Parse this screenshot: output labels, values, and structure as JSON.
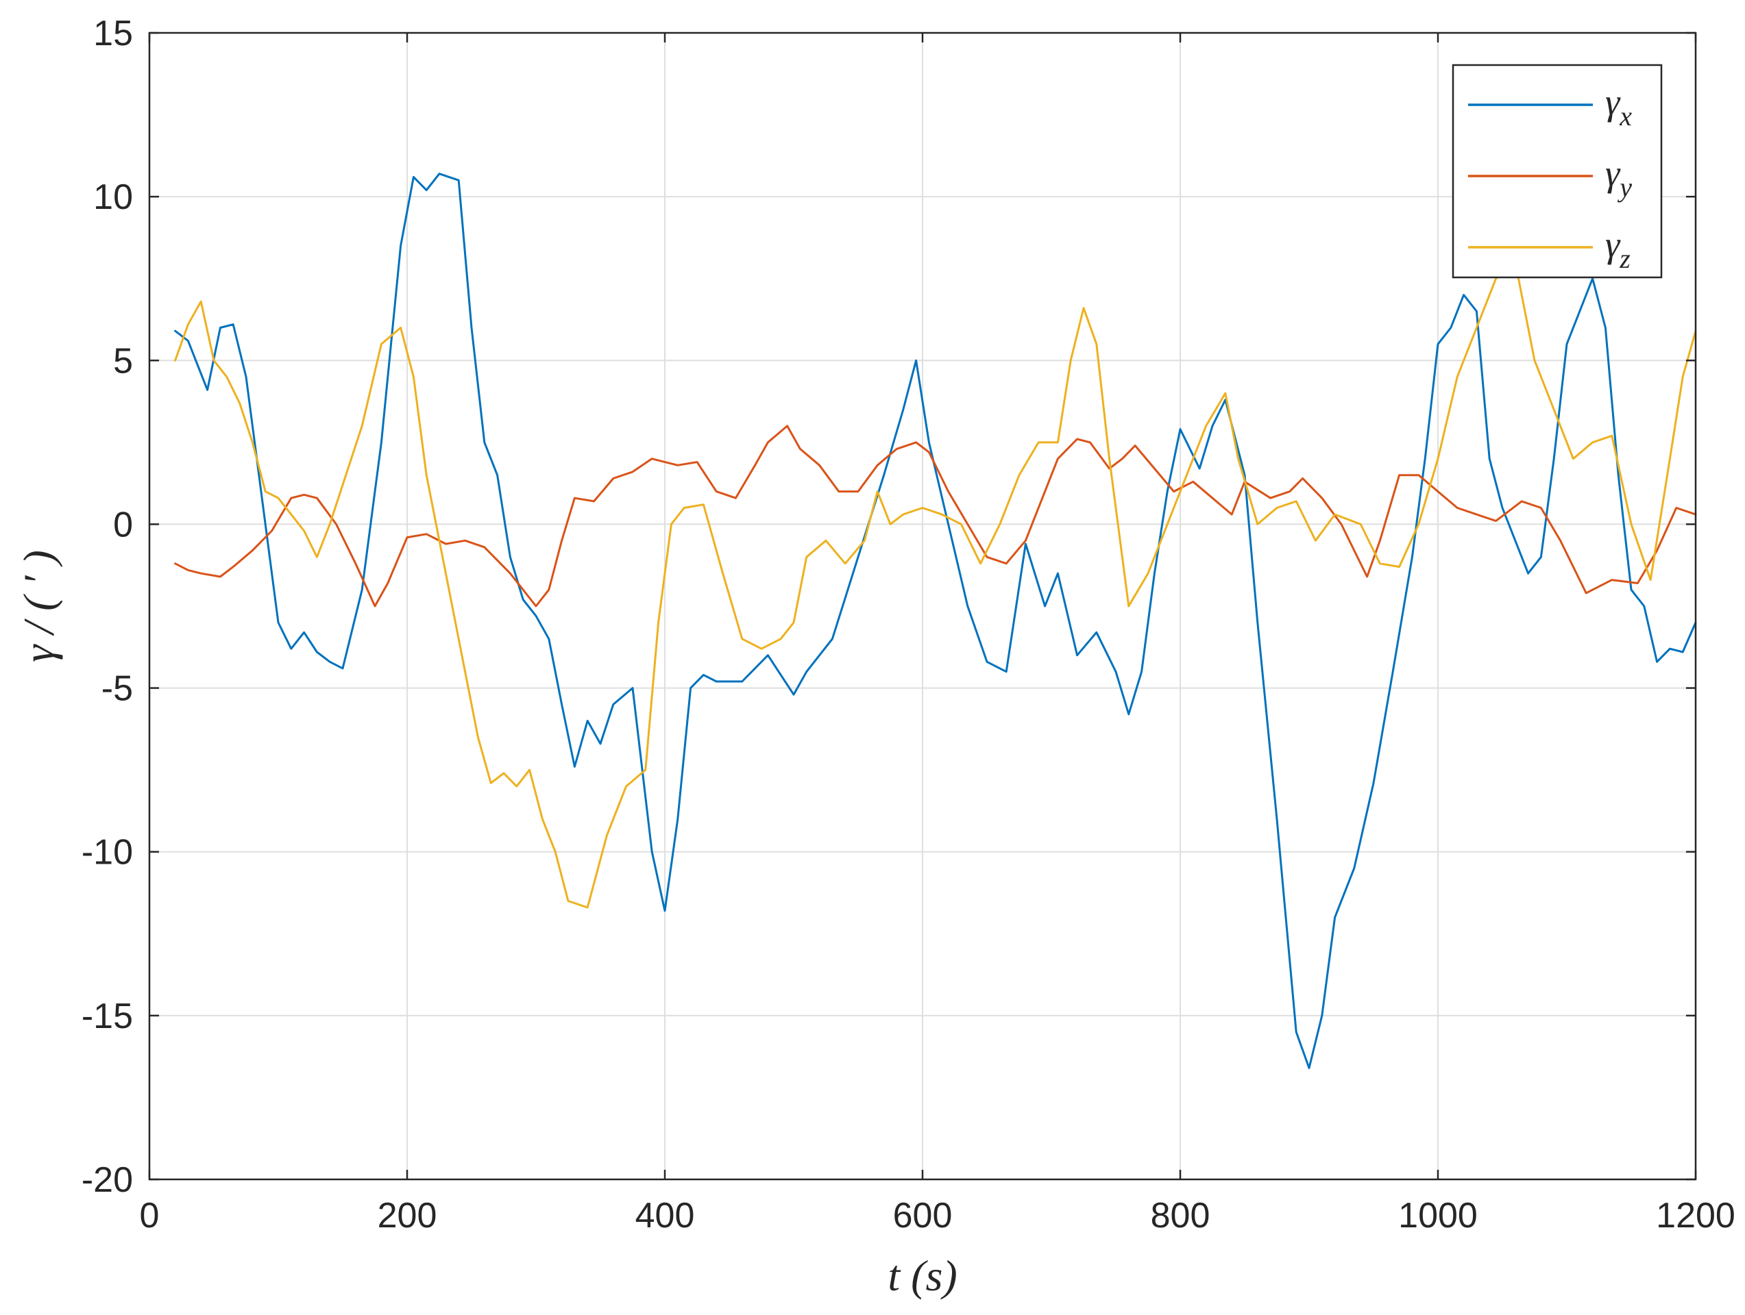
{
  "chart_data": {
    "type": "line",
    "title": "",
    "xlabel": "t (s)",
    "ylabel": "γ / ( ′ )",
    "xlim": [
      0,
      1200
    ],
    "ylim": [
      -20,
      15
    ],
    "xticks": [
      0,
      200,
      400,
      600,
      800,
      1000,
      1200
    ],
    "yticks": [
      -20,
      -15,
      -10,
      -5,
      0,
      5,
      10,
      15
    ],
    "xtick_labels": [
      "0",
      "200",
      "400",
      "600",
      "800",
      "1000",
      "1200"
    ],
    "ytick_labels": [
      "-20",
      "-15",
      "-10",
      "-5",
      "0",
      "5",
      "10",
      "15"
    ],
    "grid": true,
    "legend_position": "top-right",
    "series": [
      {
        "name": "γx",
        "legend_base": "γ",
        "legend_sub": "x",
        "color": "#0072BD",
        "x": [
          20,
          30,
          45,
          55,
          65,
          75,
          90,
          100,
          110,
          120,
          130,
          140,
          150,
          165,
          180,
          195,
          205,
          215,
          225,
          240,
          250,
          260,
          270,
          280,
          290,
          300,
          310,
          320,
          330,
          340,
          350,
          360,
          375,
          390,
          400,
          410,
          420,
          430,
          440,
          460,
          480,
          500,
          510,
          530,
          550,
          570,
          585,
          595,
          605,
          620,
          635,
          650,
          665,
          680,
          695,
          705,
          720,
          735,
          750,
          760,
          770,
          780,
          790,
          800,
          815,
          825,
          835,
          850,
          860,
          875,
          890,
          900,
          910,
          920,
          935,
          950,
          965,
          980,
          990,
          1000,
          1010,
          1020,
          1030,
          1040,
          1050,
          1060,
          1070,
          1080,
          1090,
          1100,
          1110,
          1120,
          1130,
          1140,
          1150,
          1160,
          1170,
          1180,
          1190,
          1200
        ],
        "values": [
          5.9,
          5.6,
          4.1,
          6.0,
          6.1,
          4.5,
          0.0,
          -3.0,
          -3.8,
          -3.3,
          -3.9,
          -4.2,
          -4.4,
          -2.0,
          2.5,
          8.5,
          10.6,
          10.2,
          10.7,
          10.5,
          6.0,
          2.5,
          1.5,
          -1.0,
          -2.3,
          -2.8,
          -3.5,
          -5.5,
          -7.4,
          -6.0,
          -6.7,
          -5.5,
          -5.0,
          -10.0,
          -11.8,
          -9.0,
          -5.0,
          -4.6,
          -4.8,
          -4.8,
          -4.0,
          -5.2,
          -4.5,
          -3.5,
          -1.0,
          1.5,
          3.5,
          5.0,
          2.5,
          0.0,
          -2.5,
          -4.2,
          -4.5,
          -0.6,
          -2.5,
          -1.5,
          -4.0,
          -3.3,
          -4.5,
          -5.8,
          -4.5,
          -1.5,
          1.0,
          2.9,
          1.7,
          3.0,
          3.8,
          1.5,
          -3.0,
          -9.0,
          -15.5,
          -16.6,
          -15.0,
          -12.0,
          -10.5,
          -7.9,
          -4.5,
          -1.0,
          2.0,
          5.5,
          6.0,
          7.0,
          6.5,
          2.0,
          0.5,
          -0.5,
          -1.5,
          -1.0,
          2.0,
          5.5,
          6.5,
          7.5,
          6.0,
          1.5,
          -2.0,
          -2.5,
          -4.2,
          -3.8,
          -3.9,
          -3.0
        ]
      },
      {
        "name": "γy",
        "legend_base": "γ",
        "legend_sub": "y",
        "color": "#D95319",
        "x": [
          20,
          30,
          40,
          55,
          65,
          80,
          95,
          110,
          120,
          130,
          145,
          160,
          175,
          185,
          200,
          215,
          230,
          245,
          260,
          280,
          300,
          310,
          320,
          330,
          345,
          360,
          375,
          390,
          410,
          425,
          440,
          455,
          470,
          480,
          495,
          505,
          520,
          535,
          550,
          565,
          580,
          595,
          605,
          620,
          635,
          650,
          665,
          680,
          695,
          705,
          720,
          730,
          745,
          755,
          765,
          780,
          795,
          810,
          825,
          840,
          850,
          870,
          885,
          895,
          910,
          925,
          945,
          955,
          970,
          985,
          1000,
          1015,
          1030,
          1045,
          1065,
          1080,
          1095,
          1115,
          1135,
          1155,
          1170,
          1185,
          1200
        ],
        "values": [
          -1.2,
          -1.4,
          -1.5,
          -1.6,
          -1.3,
          -0.8,
          -0.2,
          0.8,
          0.9,
          0.8,
          0.0,
          -1.2,
          -2.5,
          -1.8,
          -0.4,
          -0.3,
          -0.6,
          -0.5,
          -0.7,
          -1.5,
          -2.5,
          -2.0,
          -0.5,
          0.8,
          0.7,
          1.4,
          1.6,
          2.0,
          1.8,
          1.9,
          1.0,
          0.8,
          1.8,
          2.5,
          3.0,
          2.3,
          1.8,
          1.0,
          1.0,
          1.8,
          2.3,
          2.5,
          2.2,
          1.0,
          0.0,
          -1.0,
          -1.2,
          -0.5,
          1.0,
          2.0,
          2.6,
          2.5,
          1.7,
          2.0,
          2.4,
          1.7,
          1.0,
          1.3,
          0.8,
          0.3,
          1.3,
          0.8,
          1.0,
          1.4,
          0.8,
          0.0,
          -1.6,
          -0.5,
          1.5,
          1.5,
          1.0,
          0.5,
          0.3,
          0.1,
          0.7,
          0.5,
          -0.5,
          -2.1,
          -1.7,
          -1.8,
          -0.8,
          0.5,
          0.3
        ]
      },
      {
        "name": "γz",
        "legend_base": "γ",
        "legend_sub": "z",
        "color": "#EDB120",
        "x": [
          20,
          30,
          40,
          50,
          60,
          70,
          80,
          90,
          100,
          110,
          120,
          130,
          140,
          150,
          165,
          180,
          195,
          205,
          215,
          230,
          245,
          255,
          265,
          275,
          285,
          295,
          305,
          315,
          325,
          340,
          355,
          370,
          385,
          395,
          405,
          415,
          430,
          445,
          460,
          475,
          490,
          500,
          510,
          525,
          540,
          555,
          565,
          575,
          585,
          600,
          615,
          630,
          645,
          660,
          675,
          690,
          705,
          715,
          725,
          735,
          745,
          760,
          775,
          790,
          805,
          820,
          835,
          845,
          860,
          875,
          890,
          905,
          920,
          940,
          955,
          970,
          985,
          1000,
          1015,
          1030,
          1045,
          1060,
          1075,
          1090,
          1105,
          1120,
          1135,
          1150,
          1165,
          1180,
          1190,
          1200
        ],
        "values": [
          5.0,
          6.1,
          6.8,
          5.0,
          4.5,
          3.7,
          2.5,
          1.0,
          0.8,
          0.3,
          -0.2,
          -1.0,
          0.0,
          1.2,
          3.0,
          5.5,
          6.0,
          4.5,
          1.5,
          -1.5,
          -4.5,
          -6.5,
          -7.9,
          -7.6,
          -8.0,
          -7.5,
          -9.0,
          -10.0,
          -11.5,
          -11.7,
          -9.5,
          -8.0,
          -7.5,
          -3.0,
          0.0,
          0.5,
          0.6,
          -1.5,
          -3.5,
          -3.8,
          -3.5,
          -3.0,
          -1.0,
          -0.5,
          -1.2,
          -0.5,
          1.0,
          0.0,
          0.3,
          0.5,
          0.3,
          0.0,
          -1.2,
          0.0,
          1.5,
          2.5,
          2.5,
          5.0,
          6.6,
          5.5,
          2.0,
          -2.5,
          -1.5,
          0.0,
          1.5,
          3.0,
          4.0,
          2.0,
          0.0,
          0.5,
          0.7,
          -0.5,
          0.3,
          0.0,
          -1.2,
          -1.3,
          0.0,
          2.0,
          4.5,
          6.0,
          7.5,
          8.0,
          5.0,
          3.5,
          2.0,
          2.5,
          2.7,
          0.0,
          -1.7,
          2.0,
          4.5,
          5.9
        ]
      }
    ]
  }
}
